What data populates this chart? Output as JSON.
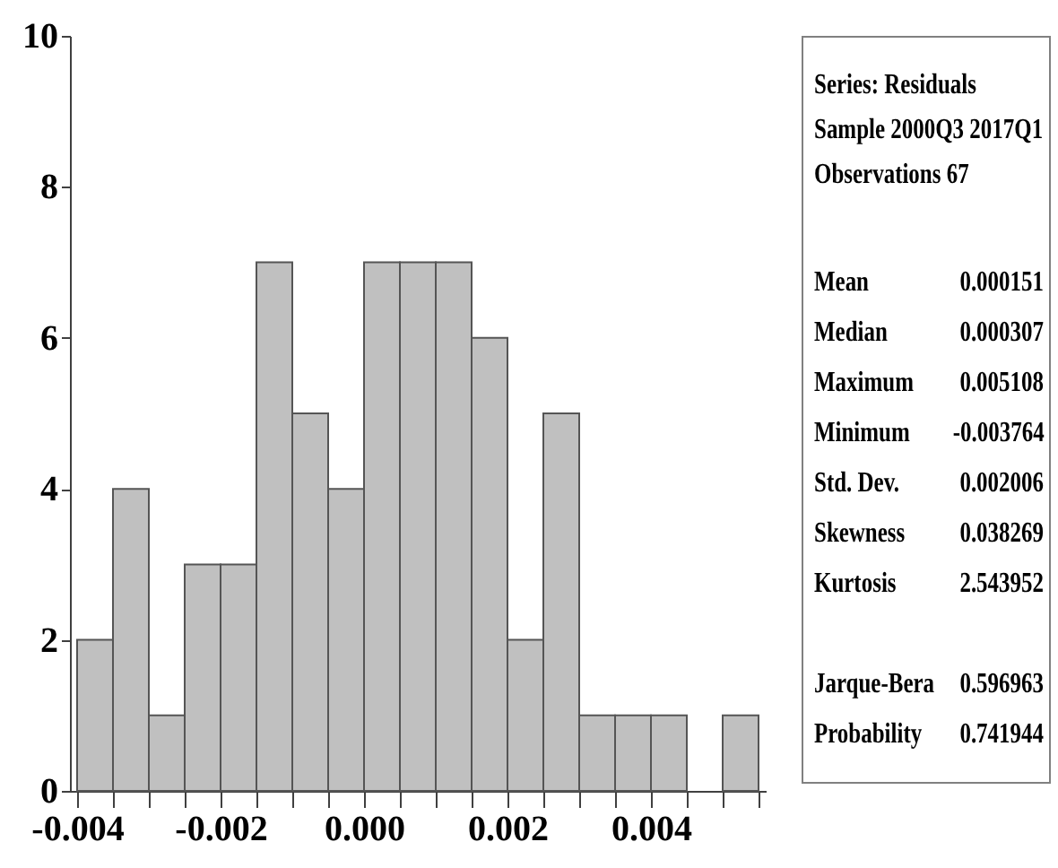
{
  "chart_data": {
    "type": "histogram",
    "bins": [
      -0.004,
      -0.0035,
      -0.003,
      -0.0025,
      -0.002,
      -0.0015,
      -0.001,
      -0.0005,
      0,
      0.0005,
      0.001,
      0.0015,
      0.002,
      0.0025,
      0.003,
      0.0035,
      0.004,
      0.0045,
      0.005,
      0.0055
    ],
    "values": [
      2,
      4,
      1,
      3,
      3,
      7,
      5,
      4,
      7,
      7,
      7,
      6,
      2,
      5,
      1,
      1,
      1,
      0,
      1
    ],
    "color": "#c0c0c0",
    "xlim": [
      -0.0041,
      0.0056
    ],
    "xticks": [
      -0.004,
      {
        "value": -0.0035,
        "label": null
      },
      {
        "value": -0.003,
        "label": null
      },
      {
        "value": -0.0025,
        "label": null
      },
      -0.002,
      {
        "value": -0.0015,
        "label": null
      },
      {
        "value": -0.001,
        "label": null
      },
      {
        "value": -0.0005,
        "label": null
      },
      {
        "value": 0,
        "label": "0.000"
      },
      {
        "value": 0.0005,
        "label": null
      },
      {
        "value": 0.001,
        "label": null
      },
      {
        "value": 0.0015,
        "label": null
      },
      0.002,
      {
        "value": 0.0025,
        "label": null
      },
      {
        "value": 0.003,
        "label": null
      },
      {
        "value": 0.0035,
        "label": null
      },
      0.004,
      {
        "value": 0.0045,
        "label": null
      },
      {
        "value": 0.005,
        "label": null
      },
      {
        "value": 0.0055,
        "label": null
      }
    ],
    "ylim": [
      0,
      10
    ],
    "yticks": [
      0,
      2,
      4,
      6,
      8,
      10
    ],
    "annotations": [
      "Series: Residuals",
      "Sample 2000Q3 2017Q1",
      "Observations 67",
      "Mean",
      "0.000151",
      "Median",
      "0.000307",
      "Maximum",
      "0.005108",
      "Minimum",
      "-0.003764",
      "Std. Dev.",
      "0.002006",
      "Skewness",
      "0.038269",
      "Kurtosis",
      "2.543952",
      "Jarque-Bera",
      "0.596963",
      "Probability",
      "0.741944"
    ]
  }
}
